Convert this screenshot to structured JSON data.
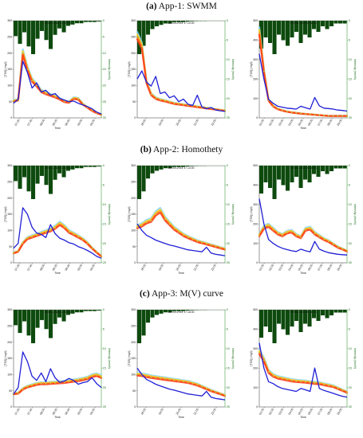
{
  "sections": [
    {
      "letter": "(a)",
      "name": "App-1: SWMM"
    },
    {
      "letter": "(b)",
      "name": "App-2: Homothety"
    },
    {
      "letter": "(c)",
      "name": "App-3: M(V) curve"
    }
  ],
  "colors": {
    "observed": "#1f1fd6",
    "rain": "#0e4a0e",
    "rain_axis": "#1a8a1a",
    "sim": [
      "#7fd3ff",
      "#ffd21a",
      "#ff8a1a",
      "#ff3b1a"
    ]
  },
  "chart_data": [
    {
      "type": "line",
      "section": "a",
      "event": "06-Oct-2014 04:46:00",
      "ylabel": "[TSS] (mg/l)",
      "y2label": "Intensity (mm/h)",
      "xlabel": "Time",
      "ylim": [
        0,
        300
      ],
      "yticks": [
        "0",
        "50",
        "100",
        "150",
        "200",
        "250",
        "300"
      ],
      "y2ticks": [
        "0",
        "5",
        "10",
        "15",
        "20",
        "25",
        "30"
      ],
      "xticks": [
        "07:20",
        "07:40",
        "08:00",
        "08:20",
        "08:40",
        "09:00",
        "09:20"
      ],
      "rain": [
        12,
        18,
        9,
        20,
        26,
        14,
        8,
        15,
        22,
        11,
        6,
        9,
        4,
        3,
        2,
        2,
        1,
        1,
        1,
        0.6
      ],
      "observed": [
        45,
        58,
        175,
        140,
        92,
        108,
        80,
        85,
        70,
        75,
        60,
        55,
        50,
        52,
        45,
        40,
        35,
        28,
        18,
        12
      ],
      "simulated": [
        52,
        55,
        200,
        150,
        115,
        100,
        82,
        75,
        70,
        65,
        58,
        50,
        48,
        60,
        58,
        42,
        32,
        22,
        15,
        10
      ]
    },
    {
      "type": "line",
      "section": "a",
      "event": "08-Oct-2014 17:10:00",
      "ylabel": "[TSS] (mg/l)",
      "y2label": "Intensity (mm/h)",
      "xlabel": "",
      "ylim": [
        0,
        300
      ],
      "yticks": [
        "0",
        "50",
        "100",
        "150",
        "200",
        "250",
        "300"
      ],
      "y2ticks": [
        "0",
        "5",
        "10",
        "15",
        "20",
        "25"
      ],
      "xticks": [
        "18:00",
        "19:00",
        "20:00",
        "21:00",
        "22:00"
      ],
      "rain": [
        24,
        18,
        10,
        6,
        4,
        3,
        2,
        2,
        1,
        1,
        1,
        0.6,
        0.4,
        0.3,
        0.2,
        0.2,
        0.1,
        0.1,
        0.1,
        0.1
      ],
      "observed": [
        120,
        145,
        110,
        98,
        128,
        75,
        80,
        62,
        68,
        50,
        58,
        42,
        38,
        70,
        34,
        28,
        32,
        24,
        22,
        20
      ],
      "simulated": [
        250,
        220,
        110,
        72,
        60,
        55,
        52,
        48,
        44,
        42,
        40,
        38,
        36,
        34,
        32,
        30,
        28,
        26,
        24,
        22
      ]
    },
    {
      "type": "line",
      "section": "a",
      "event": "19-Nov-2014 00:16:00",
      "ylabel": "[TSS] (mg/l)",
      "y2label": "Intensity (mm/h)",
      "xlabel": "Time",
      "ylim": [
        0,
        500
      ],
      "yticks": [
        "0",
        "100",
        "200",
        "300",
        "400",
        "500"
      ],
      "y2ticks": [
        "0",
        "5",
        "10",
        "15",
        "20",
        "25"
      ],
      "xticks": [
        "01:00",
        "02:00",
        "03:00",
        "04:00",
        "05:00",
        "06:00",
        "07:00",
        "08:00",
        "09:00"
      ],
      "rain": [
        10,
        6,
        8,
        12,
        5,
        7,
        9,
        6,
        4,
        8,
        5,
        6,
        3,
        4,
        2,
        3,
        2,
        1,
        1,
        1
      ],
      "observed": [
        330,
        200,
        95,
        75,
        60,
        55,
        50,
        48,
        45,
        60,
        52,
        45,
        105,
        62,
        50,
        48,
        45,
        40,
        38,
        35
      ],
      "simulated": [
        440,
        240,
        90,
        60,
        45,
        38,
        32,
        28,
        25,
        22,
        20,
        18,
        16,
        14,
        12,
        10,
        10,
        10,
        10,
        10
      ]
    },
    {
      "type": "line",
      "section": "b",
      "event": "06-Oct-2014 04:46:00",
      "ylabel": "[TSS] (mg/l)",
      "y2label": "Intensity (mm/h)",
      "xlabel": "Time",
      "ylim": [
        0,
        300
      ],
      "yticks": [
        "0",
        "50",
        "100",
        "150",
        "200",
        "250",
        "300"
      ],
      "y2ticks": [
        "0",
        "5",
        "10",
        "15",
        "20",
        "25"
      ],
      "xticks": [
        "07:20",
        "07:40",
        "08:00",
        "08:20",
        "08:40",
        "09:00",
        "09:20"
      ],
      "rain": [
        12,
        18,
        9,
        20,
        26,
        14,
        8,
        15,
        22,
        11,
        6,
        9,
        4,
        3,
        2,
        2,
        1,
        1,
        1,
        0.6
      ],
      "observed": [
        45,
        60,
        170,
        150,
        110,
        92,
        88,
        78,
        118,
        90,
        76,
        70,
        62,
        58,
        50,
        45,
        38,
        30,
        20,
        14
      ],
      "simulated": [
        30,
        35,
        60,
        75,
        80,
        85,
        90,
        95,
        100,
        108,
        120,
        110,
        95,
        88,
        80,
        72,
        60,
        45,
        32,
        20
      ]
    },
    {
      "type": "line",
      "section": "b",
      "event": "08-Oct-2014 17:13:00",
      "ylabel": "[TSS] (mg/l)",
      "y2label": "Intensity (mm/h)",
      "xlabel": "Time",
      "ylim": [
        0,
        300
      ],
      "yticks": [
        "0",
        "50",
        "100",
        "150",
        "200",
        "250",
        "300"
      ],
      "y2ticks": [
        "0",
        "5",
        "10",
        "15",
        "20",
        "25"
      ],
      "xticks": [
        "18:00",
        "19:00",
        "20:00",
        "21:00",
        "22:00"
      ],
      "rain": [
        26,
        20,
        10,
        6,
        4,
        3,
        2,
        2,
        1,
        1,
        1,
        0.6,
        0.4,
        0.3,
        0.2,
        0.2,
        0.1,
        0.1,
        0.1,
        0.1
      ],
      "observed": [
        120,
        100,
        85,
        78,
        70,
        65,
        60,
        55,
        52,
        48,
        44,
        40,
        38,
        36,
        34,
        48,
        30,
        26,
        24,
        22
      ],
      "simulated": [
        110,
        115,
        125,
        130,
        150,
        160,
        135,
        120,
        105,
        95,
        85,
        78,
        72,
        66,
        62,
        58,
        54,
        50,
        46,
        42
      ]
    },
    {
      "type": "line",
      "section": "b",
      "event": "19-Nov-2014 00:16:00",
      "ylabel": "[TSS] (mg/l)",
      "y2label": "Intensity (mm/h)",
      "xlabel": "Time",
      "ylim": [
        0,
        500
      ],
      "yticks": [
        "0",
        "100",
        "200",
        "300",
        "400",
        "500"
      ],
      "y2ticks": [
        "0",
        "5",
        "10",
        "15",
        "20",
        "25"
      ],
      "xticks": [
        "01:00",
        "02:00",
        "03:00",
        "04:00",
        "05:00",
        "06:00",
        "07:00",
        "08:00",
        "09:00"
      ],
      "rain": [
        10,
        6,
        8,
        12,
        5,
        7,
        9,
        6,
        4,
        8,
        5,
        6,
        3,
        4,
        2,
        3,
        2,
        1,
        1,
        1
      ],
      "observed": [
        330,
        200,
        120,
        100,
        85,
        75,
        68,
        62,
        58,
        70,
        62,
        56,
        110,
        70,
        60,
        52,
        48,
        44,
        42,
        40
      ],
      "simulated": [
        140,
        180,
        190,
        170,
        150,
        140,
        155,
        160,
        140,
        130,
        170,
        175,
        150,
        135,
        120,
        110,
        95,
        80,
        70,
        60
      ]
    },
    {
      "type": "line",
      "section": "c",
      "event": "06-Oct-2014 04:46:00",
      "ylabel": "[TSS] (mg/l)",
      "y2label": "Intensity (mm/h)",
      "xlabel": "Time",
      "ylim": [
        0,
        300
      ],
      "yticks": [
        "0",
        "50",
        "100",
        "150",
        "200",
        "250",
        "300"
      ],
      "y2ticks": [
        "0",
        "5",
        "10",
        "15",
        "20",
        "25"
      ],
      "xticks": [
        "07:20",
        "07:40",
        "08:00",
        "08:20",
        "08:40",
        "09:00",
        "09:20"
      ],
      "rain": [
        12,
        18,
        9,
        20,
        26,
        14,
        8,
        15,
        22,
        11,
        6,
        9,
        4,
        3,
        2,
        2,
        1,
        1,
        1,
        0.6
      ],
      "observed": [
        40,
        60,
        170,
        140,
        95,
        82,
        105,
        78,
        118,
        90,
        76,
        80,
        88,
        82,
        70,
        75,
        78,
        90,
        72,
        60
      ],
      "simulated": [
        40,
        42,
        55,
        62,
        66,
        70,
        72,
        72,
        73,
        74,
        75,
        76,
        78,
        80,
        82,
        85,
        88,
        95,
        98,
        92
      ]
    },
    {
      "type": "line",
      "section": "c",
      "event": "08-Oct-2014 17:18:00",
      "ylabel": "[TSS] (mg/l)",
      "y2label": "Intensity (mm/h)",
      "xlabel": "Time",
      "ylim": [
        0,
        300
      ],
      "yticks": [
        "0",
        "50",
        "100",
        "150",
        "200",
        "250",
        "300"
      ],
      "y2ticks": [
        "0",
        "5",
        "10",
        "15",
        "20",
        "25"
      ],
      "xticks": [
        "18:00",
        "19:00",
        "20:00",
        "21:00",
        "22:00"
      ],
      "rain": [
        26,
        20,
        10,
        6,
        4,
        3,
        2,
        2,
        1,
        1,
        1,
        0.6,
        0.4,
        0.3,
        0.2,
        0.2,
        0.1,
        0.1,
        0.1,
        0.1
      ],
      "observed": [
        120,
        100,
        85,
        78,
        70,
        65,
        60,
        55,
        52,
        48,
        44,
        40,
        38,
        36,
        34,
        48,
        30,
        26,
        24,
        22
      ],
      "simulated": [
        100,
        98,
        95,
        92,
        90,
        88,
        86,
        84,
        82,
        80,
        78,
        76,
        72,
        68,
        62,
        56,
        50,
        45,
        40,
        35
      ]
    },
    {
      "type": "line",
      "section": "c",
      "event": "19-Nov-2014 00:16:00",
      "ylabel": "[TSS] (mg/l)",
      "y2label": "Intensity (mm/h)",
      "xlabel": "Time",
      "ylim": [
        0,
        500
      ],
      "yticks": [
        "0",
        "100",
        "200",
        "300",
        "400",
        "500"
      ],
      "y2ticks": [
        "0",
        "5",
        "10",
        "15",
        "20",
        "25"
      ],
      "xticks": [
        "01:00",
        "02:00",
        "03:00",
        "04:00",
        "05:00",
        "06:00",
        "07:00",
        "08:00",
        "09:00"
      ],
      "rain": [
        10,
        6,
        8,
        12,
        5,
        7,
        9,
        6,
        4,
        8,
        5,
        6,
        3,
        4,
        2,
        3,
        2,
        1,
        1,
        1
      ],
      "observed": [
        330,
        200,
        130,
        120,
        105,
        95,
        90,
        85,
        80,
        95,
        88,
        80,
        200,
        95,
        85,
        78,
        70,
        62,
        55,
        50
      ],
      "simulated": [
        280,
        240,
        180,
        160,
        150,
        145,
        140,
        135,
        132,
        130,
        128,
        125,
        122,
        120,
        115,
        110,
        105,
        95,
        85,
        75
      ]
    }
  ]
}
